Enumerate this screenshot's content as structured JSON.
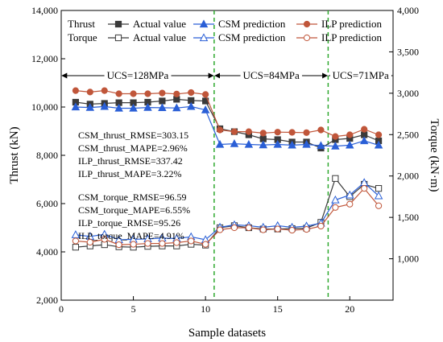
{
  "chart_data": {
    "type": "line",
    "xlabel": "Sample datasets",
    "ylabel_left": "Thrust (kN)",
    "ylabel_right": "Torque (kN·m)",
    "xlim": [
      0,
      23
    ],
    "xticks": [
      0,
      5,
      10,
      15,
      20
    ],
    "ylim_left": [
      2000,
      14000
    ],
    "yticks_left": [
      2000,
      4000,
      6000,
      8000,
      10000,
      12000,
      14000
    ],
    "ylim_right": [
      500,
      4000
    ],
    "yticks_right": [
      1000,
      1500,
      2000,
      2500,
      3000,
      3500,
      4000
    ],
    "grid": false,
    "x": [
      1,
      2,
      3,
      4,
      5,
      6,
      7,
      8,
      9,
      10,
      11,
      12,
      13,
      14,
      15,
      16,
      17,
      18,
      19,
      20,
      21,
      22
    ],
    "series": [
      {
        "name": "Actual value",
        "group": "Thrust",
        "axis": "left",
        "marker": "square-filled",
        "color": "#3a3a3a",
        "values": [
          10200,
          10120,
          10150,
          10180,
          10180,
          10200,
          10250,
          10320,
          10270,
          10250,
          9100,
          8980,
          8850,
          8680,
          8650,
          8550,
          8550,
          8300,
          8650,
          8700,
          8850,
          8600
        ]
      },
      {
        "name": "CSM prediction",
        "group": "Thrust",
        "axis": "left",
        "marker": "triangle-filled",
        "color": "#2a5fd6",
        "values": [
          10000,
          9980,
          10020,
          9950,
          9950,
          9980,
          9970,
          9960,
          10020,
          9880,
          8450,
          8480,
          8450,
          8430,
          8450,
          8420,
          8450,
          8400,
          8380,
          8420,
          8600,
          8420
        ]
      },
      {
        "name": "ILP prediction",
        "group": "Thrust",
        "axis": "left",
        "marker": "circle-filled",
        "color": "#c0563a",
        "values": [
          10680,
          10620,
          10680,
          10550,
          10550,
          10550,
          10580,
          10540,
          10600,
          10520,
          9050,
          8980,
          8980,
          8920,
          8960,
          8950,
          8940,
          9050,
          8780,
          8850,
          9080,
          8850
        ]
      },
      {
        "name": "Actual value",
        "group": "Torque",
        "axis": "right",
        "marker": "square-open",
        "color": "#3a3a3a",
        "values": [
          1140,
          1155,
          1170,
          1145,
          1140,
          1150,
          1155,
          1155,
          1175,
          1165,
          1375,
          1400,
          1375,
          1360,
          1360,
          1365,
          1370,
          1440,
          1970,
          1750,
          1900,
          1850
        ]
      },
      {
        "name": "CSM prediction",
        "group": "Torque",
        "axis": "right",
        "marker": "triangle-open",
        "color": "#2a5fd6",
        "values": [
          1290,
          1270,
          1295,
          1230,
          1235,
          1240,
          1250,
          1245,
          1265,
          1230,
          1380,
          1410,
          1400,
          1380,
          1400,
          1380,
          1395,
          1430,
          1710,
          1770,
          1920,
          1760
        ]
      },
      {
        "name": "ILP prediction",
        "group": "Torque",
        "axis": "right",
        "marker": "circle-open",
        "color": "#c0563a",
        "values": [
          1215,
          1200,
          1235,
          1170,
          1175,
          1185,
          1185,
          1195,
          1215,
          1175,
          1350,
          1375,
          1375,
          1350,
          1360,
          1345,
          1355,
          1395,
          1620,
          1660,
          1850,
          1640
        ]
      }
    ],
    "legend": {
      "placement": "top",
      "rows": [
        {
          "label": "Thrust",
          "entries": [
            0,
            1,
            2
          ]
        },
        {
          "label": "Torque",
          "entries": [
            3,
            4,
            5
          ]
        }
      ]
    },
    "regions": [
      {
        "label": "UCS=128MPa",
        "from": 0,
        "to": 10.6
      },
      {
        "label": "UCS=84MPa",
        "from": 10.6,
        "to": 18.5
      },
      {
        "label": "UCS=71MPa",
        "from": 18.5,
        "to": 23
      }
    ],
    "region_arrow_y": 11300,
    "dividers": [
      10.6,
      18.5
    ],
    "divider_color": "#2ea82e",
    "annotations": {
      "thrust": [
        "CSM_thrust_RMSE=303.15",
        "CSM_thrust_MAPE=2.96%",
        "ILP_thrust_RMSE=337.42",
        "ILP_thrust_MAPE=3.22%"
      ],
      "torque": [
        "CSM_torque_RMSE=96.59",
        "CSM_torque_MAPE=6.55%",
        "ILP_torque_RMSE=95.26",
        "ILP_torque_MAPE=4.91%"
      ]
    }
  }
}
